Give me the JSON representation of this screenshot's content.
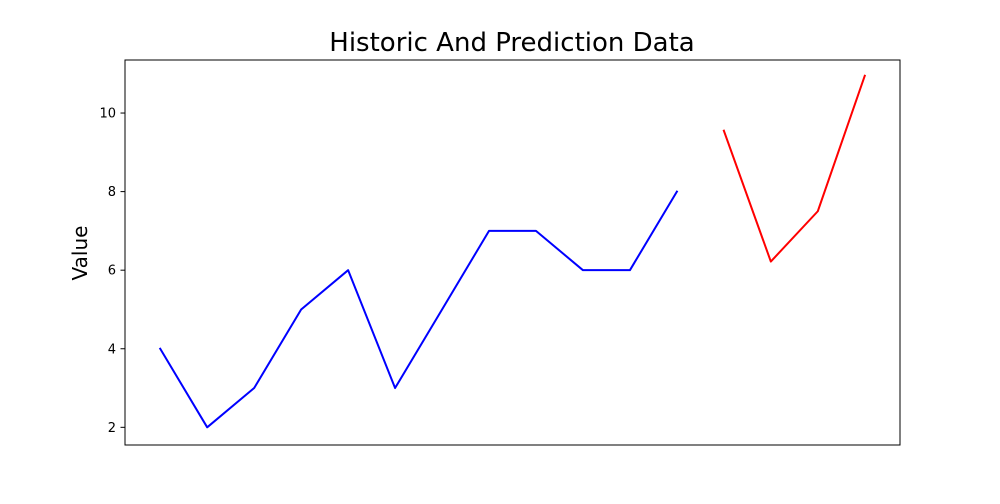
{
  "chart_data": {
    "type": "line",
    "title": "Historic And Prediction Data",
    "xlabel": "",
    "ylabel": "Value",
    "ylim": [
      1.55,
      11.35
    ],
    "yticks": [
      2,
      4,
      6,
      8,
      10
    ],
    "grid": false,
    "legend": "none",
    "series": [
      {
        "color": "#0000ff",
        "x": [
          0,
          1,
          2,
          3,
          4,
          5,
          6,
          7,
          8,
          9,
          10,
          11
        ],
        "values": [
          4,
          2,
          3,
          5,
          6,
          3,
          5,
          7,
          7,
          6,
          6,
          8
        ]
      },
      {
        "color": "#ff0000",
        "x": [
          12,
          13,
          14,
          15
        ],
        "values": [
          9.55,
          6.22,
          7.5,
          10.95
        ]
      }
    ],
    "xlim": [
      -0.75,
      15.75
    ]
  }
}
